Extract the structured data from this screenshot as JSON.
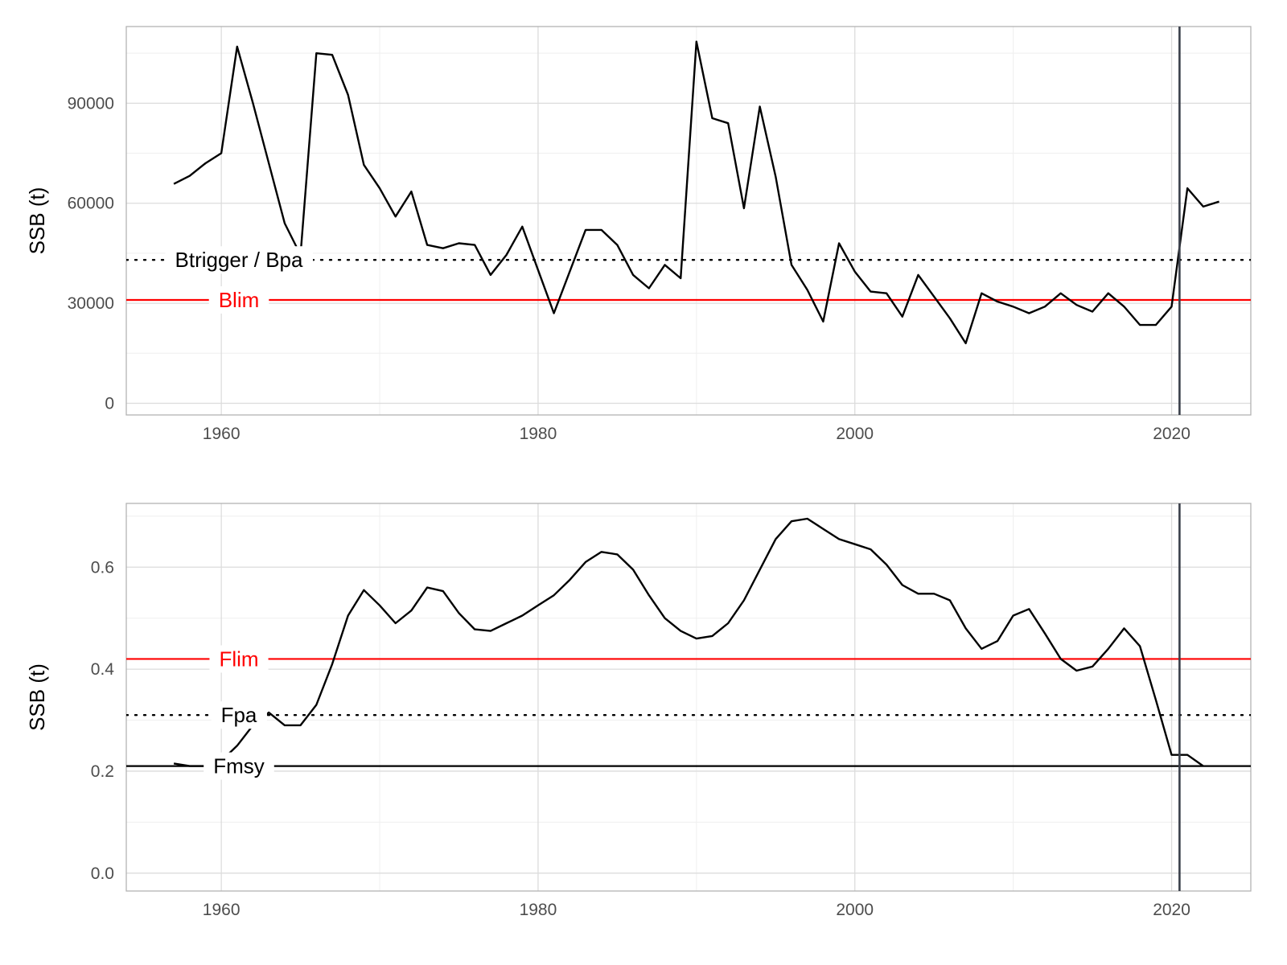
{
  "chart_data": [
    {
      "type": "line",
      "ylabel": "SSB (t)",
      "xlabel": "",
      "xlim": [
        1954,
        2025
      ],
      "ylim": [
        -3500,
        113000
      ],
      "x_ticks": [
        1960,
        1980,
        2000,
        2020
      ],
      "y_ticks": [
        0,
        30000,
        60000,
        90000
      ],
      "grid": true,
      "series": [
        {
          "x": [
            1957,
            1958,
            1959,
            1960,
            1961,
            1962,
            1963,
            1964,
            1965,
            1966,
            1967,
            1968,
            1969,
            1970,
            1971,
            1972,
            1973,
            1974,
            1975,
            1976,
            1977,
            1978,
            1979,
            1980,
            1981,
            1982,
            1983,
            1984,
            1985,
            1986,
            1987,
            1988,
            1989,
            1990,
            1991,
            1992,
            1993,
            1994,
            1995,
            1996,
            1997,
            1998,
            1999,
            2000,
            2001,
            2002,
            2003,
            2004,
            2005,
            2006,
            2007,
            2008,
            2009,
            2010,
            2011,
            2012,
            2013,
            2014,
            2015,
            2016,
            2017,
            2018,
            2019,
            2020,
            2021,
            2022,
            2023
          ],
          "values": [
            65800,
            68200,
            72000,
            75000,
            107000,
            90000,
            72000,
            54000,
            44500,
            105000,
            104500,
            92500,
            71500,
            64500,
            56000,
            63500,
            47500,
            46500,
            48000,
            47500,
            38500,
            44500,
            53000,
            40000,
            27000,
            39500,
            52000,
            52000,
            47500,
            38500,
            34500,
            41500,
            37500,
            108500,
            85500,
            84000,
            58500,
            89000,
            68000,
            41500,
            34000,
            24500,
            48000,
            39500,
            33500,
            33000,
            26000,
            38500,
            32000,
            25500,
            18000,
            33000,
            30500,
            29000,
            27000,
            29000,
            33000,
            29500,
            27500,
            33000,
            29000,
            23500,
            23500,
            29000,
            64500,
            59000,
            60500
          ]
        }
      ],
      "reference_lines": [
        {
          "label": "Btrigger / Bpa",
          "value": 43000,
          "style": "dotted",
          "color": "#000000"
        },
        {
          "label": "Blim",
          "value": 31000,
          "style": "solid",
          "color": "#ff0000"
        }
      ],
      "vline": 2020.5
    },
    {
      "type": "line",
      "ylabel": "SSB (t)",
      "xlabel": "",
      "xlim": [
        1954,
        2025
      ],
      "ylim": [
        -0.035,
        0.725
      ],
      "x_ticks": [
        1960,
        1980,
        2000,
        2020
      ],
      "y_ticks": [
        0.0,
        0.2,
        0.4,
        0.6
      ],
      "y_tick_labels": [
        "0.0",
        "0.2",
        "0.4",
        "0.6"
      ],
      "grid": true,
      "series": [
        {
          "x": [
            1957,
            1958,
            1959,
            1960,
            1961,
            1962,
            1963,
            1964,
            1965,
            1966,
            1967,
            1968,
            1969,
            1970,
            1971,
            1972,
            1973,
            1974,
            1975,
            1976,
            1977,
            1978,
            1979,
            1980,
            1981,
            1982,
            1983,
            1984,
            1985,
            1986,
            1987,
            1988,
            1989,
            1990,
            1991,
            1992,
            1993,
            1994,
            1995,
            1996,
            1997,
            1998,
            1999,
            2000,
            2001,
            2002,
            2003,
            2004,
            2005,
            2006,
            2007,
            2008,
            2009,
            2010,
            2011,
            2012,
            2013,
            2014,
            2015,
            2016,
            2017,
            2018,
            2019,
            2020,
            2021,
            2022
          ],
          "values": [
            0.215,
            0.21,
            0.21,
            0.22,
            0.25,
            0.29,
            0.315,
            0.29,
            0.29,
            0.33,
            0.41,
            0.505,
            0.555,
            0.525,
            0.49,
            0.515,
            0.56,
            0.553,
            0.51,
            0.478,
            0.475,
            0.49,
            0.505,
            0.525,
            0.545,
            0.575,
            0.61,
            0.63,
            0.625,
            0.595,
            0.545,
            0.5,
            0.475,
            0.46,
            0.465,
            0.49,
            0.535,
            0.595,
            0.655,
            0.69,
            0.695,
            0.675,
            0.655,
            0.645,
            0.635,
            0.605,
            0.565,
            0.548,
            0.548,
            0.535,
            0.48,
            0.44,
            0.455,
            0.505,
            0.518,
            0.47,
            0.42,
            0.397,
            0.405,
            0.44,
            0.48,
            0.445,
            0.34,
            0.232,
            0.232,
            0.21
          ]
        }
      ],
      "reference_lines": [
        {
          "label": "Flim",
          "value": 0.42,
          "style": "solid",
          "color": "#ff0000"
        },
        {
          "label": "Fpa",
          "value": 0.31,
          "style": "dotted",
          "color": "#000000"
        },
        {
          "label": "Fmsy",
          "value": 0.21,
          "style": "solid",
          "color": "#000000"
        }
      ],
      "vline": 2020.5
    }
  ]
}
